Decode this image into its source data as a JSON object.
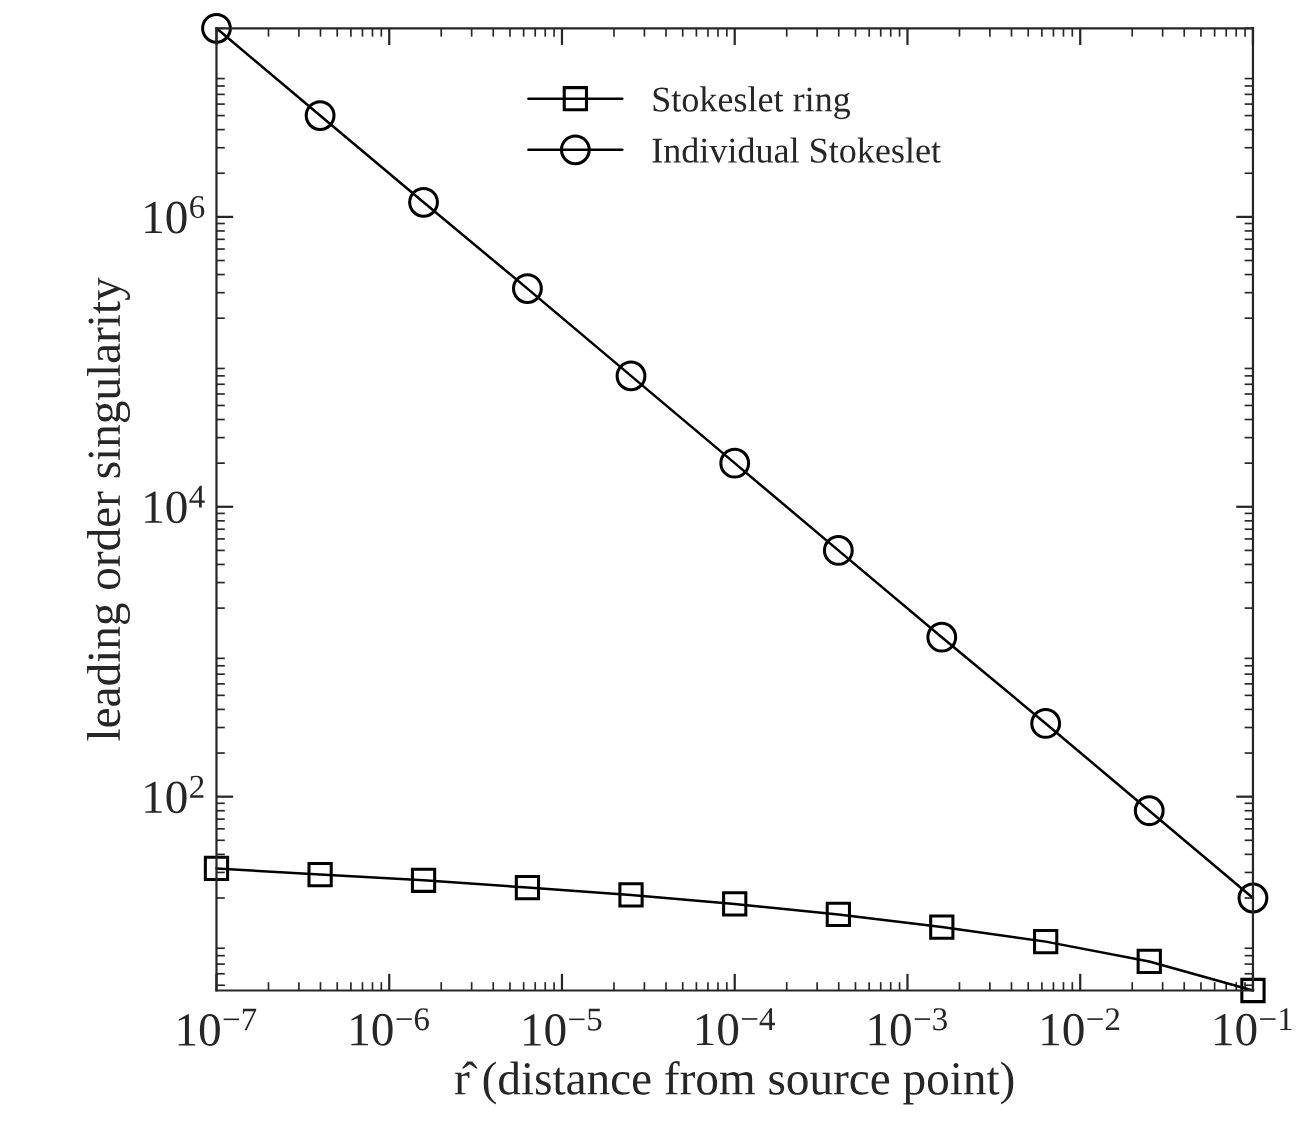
{
  "chart_data": {
    "type": "line",
    "xlabel": "r̂ (distance from source point)",
    "ylabel": "leading order singularity",
    "x": [
      1e-07,
      3.98e-07,
      1.58e-06,
      6.31e-06,
      2.51e-05,
      0.0001,
      0.000398,
      0.00158,
      0.00631,
      0.0251,
      0.1
    ],
    "series": [
      {
        "name": "Stokeslet ring",
        "color": "#000000",
        "marker": "square",
        "values": [
          32,
          29,
          26.5,
          23.6,
          21,
          18.2,
          15.4,
          12.6,
          10,
          7.3,
          4.6
        ]
      },
      {
        "name": "Individual Stokeslet",
        "color": "#000000",
        "marker": "circle",
        "values": [
          20000000.0,
          5000000.0,
          1260000.0,
          320000.0,
          80000.0,
          20000.0,
          5000,
          1260,
          320,
          80,
          20
        ]
      }
    ],
    "log": "xy",
    "xlim": [
      1e-07,
      0.1
    ],
    "ylim": [
      4.6,
      20000000.0
    ],
    "xticks": [
      {
        "value": 1e-07,
        "label": "10$^{−7}$"
      },
      {
        "value": 1e-06,
        "label": "10$^{−6}$"
      },
      {
        "value": 1e-05,
        "label": "10$^{−5}$"
      },
      {
        "value": 0.0001,
        "label": "10$^{−4}$"
      },
      {
        "value": 0.001,
        "label": "10$^{−3}$"
      },
      {
        "value": 0.01,
        "label": "10$^{−2}$"
      },
      {
        "value": 0.1,
        "label": "10$^{−1}$"
      }
    ],
    "yticks": [
      {
        "value": 100,
        "label": "10$^{2}$"
      },
      {
        "value": 10000,
        "label": "10$^{4}$"
      },
      {
        "value": 1000000,
        "label": "10$^{6}$"
      }
    ],
    "legend": "top",
    "grid": false,
    "line_style": "solid"
  }
}
